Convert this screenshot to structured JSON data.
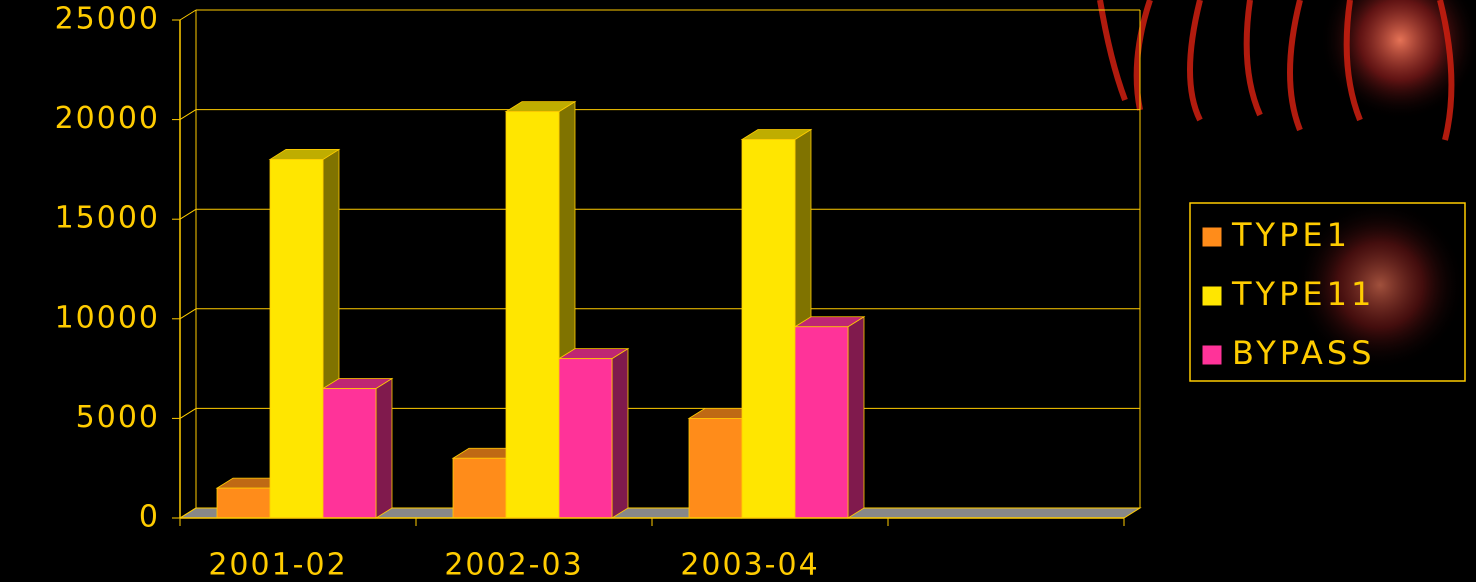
{
  "chart_data": {
    "type": "bar3d",
    "categories": [
      "2001-02",
      "2002-03",
      "2003-04",
      null
    ],
    "series": [
      {
        "name": "TYPE1",
        "color": "#ff8c1a",
        "values": [
          1500,
          3000,
          5000,
          null
        ]
      },
      {
        "name": "TYPE11",
        "color": "#ffe600",
        "values": [
          18000,
          20400,
          19000,
          null
        ]
      },
      {
        "name": "BYPASS",
        "color": "#ff3399",
        "values": [
          6500,
          8000,
          9600,
          null
        ]
      }
    ],
    "ylim": [
      0,
      25000
    ],
    "yticks": [
      0,
      5000,
      10000,
      15000,
      20000,
      25000
    ],
    "grid": true
  }
}
